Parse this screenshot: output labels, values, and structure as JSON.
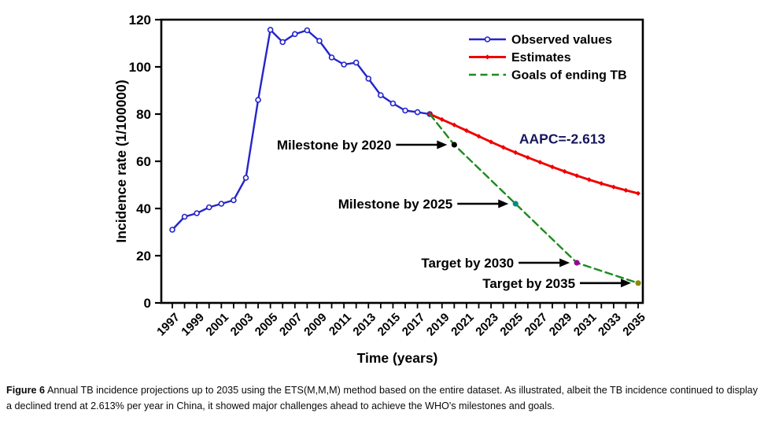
{
  "figure": {
    "caption_label": "Figure 6",
    "caption_text": "Annual TB incidence projections up to 2035 using the ETS(M,M,M) method based on the entire dataset. As illustrated, albeit the TB incidence continued to display a declined trend at 2.613% per year in China, it showed major challenges ahead to achieve the WHO's milestones and goals."
  },
  "colors": {
    "observed": "#2424cc",
    "estimates": "#ee0000",
    "goals": "#1e8a1e",
    "axis": "#000000",
    "aapc_text": "#16165c"
  },
  "chart_data": {
    "type": "line",
    "title": "",
    "xlabel": "Time (years)",
    "ylabel": "Incidence rate (1/100000)",
    "xlim": [
      1996.1,
      2035.4
    ],
    "ylim": [
      0,
      120
    ],
    "yticks": [
      0,
      20,
      40,
      60,
      80,
      100,
      120
    ],
    "xticks_minor_years": [
      1997,
      2035
    ],
    "xticks_labeled": [
      "1997",
      "1999",
      "2001",
      "2003",
      "2005",
      "2007",
      "2009",
      "2011",
      "2013",
      "2015",
      "2017",
      "2019",
      "2021",
      "2023",
      "2025",
      "2027",
      "2029",
      "2031",
      "2033",
      "2035"
    ],
    "grid": false,
    "legend_position": "top-right-inside",
    "series": [
      {
        "name": "Observed values",
        "color_key": "observed",
        "marker": "open-circle",
        "dashed": false,
        "x": [
          1997,
          1998,
          1999,
          2000,
          2001,
          2002,
          2003,
          2004,
          2005,
          2006,
          2007,
          2008,
          2009,
          2010,
          2011,
          2012,
          2013,
          2014,
          2015,
          2016,
          2017,
          2018
        ],
        "values": [
          31.0,
          36.5,
          38.0,
          40.5,
          42.0,
          43.5,
          53.0,
          86.0,
          115.7,
          110.5,
          113.9,
          115.5,
          111.0,
          104.0,
          101.0,
          101.8,
          95.0,
          88.0,
          84.5,
          81.5,
          80.8,
          80.0
        ]
      },
      {
        "name": "Estimates",
        "color_key": "estimates",
        "marker": "filled-diamond",
        "dashed": false,
        "x": [
          2018,
          2019,
          2020,
          2021,
          2022,
          2023,
          2024,
          2025,
          2026,
          2027,
          2028,
          2029,
          2030,
          2031,
          2032,
          2033,
          2034,
          2035
        ],
        "values": [
          80.0,
          77.7,
          75.4,
          73.0,
          70.6,
          68.2,
          65.9,
          63.7,
          61.6,
          59.6,
          57.6,
          55.7,
          53.9,
          52.2,
          50.6,
          49.1,
          47.7,
          46.4
        ]
      },
      {
        "name": "Goals of ending TB",
        "color_key": "goals",
        "marker": "none",
        "dashed": true,
        "x": [
          2018,
          2020,
          2025,
          2030,
          2035
        ],
        "values": [
          80.0,
          67.0,
          42.0,
          17.0,
          8.4
        ]
      }
    ],
    "annotations": [
      {
        "type": "callout",
        "label": "Milestone by 2020",
        "year": 2020,
        "value": 67.0,
        "dot_color": "#000000"
      },
      {
        "type": "callout",
        "label": "Milestone by 2025",
        "year": 2025,
        "value": 42.0,
        "dot_color": "#008b8b"
      },
      {
        "type": "callout",
        "label": "Target by 2030",
        "year": 2030,
        "value": 17.0,
        "dot_color": "#990099"
      },
      {
        "type": "callout",
        "label": "Target by 2035",
        "year": 2035,
        "value": 8.4,
        "dot_color": "#8b8b00"
      },
      {
        "type": "text",
        "label": "AAPC=-2.613",
        "year": 2025.3,
        "value": 67.5,
        "color_key": "aapc_text"
      }
    ]
  }
}
